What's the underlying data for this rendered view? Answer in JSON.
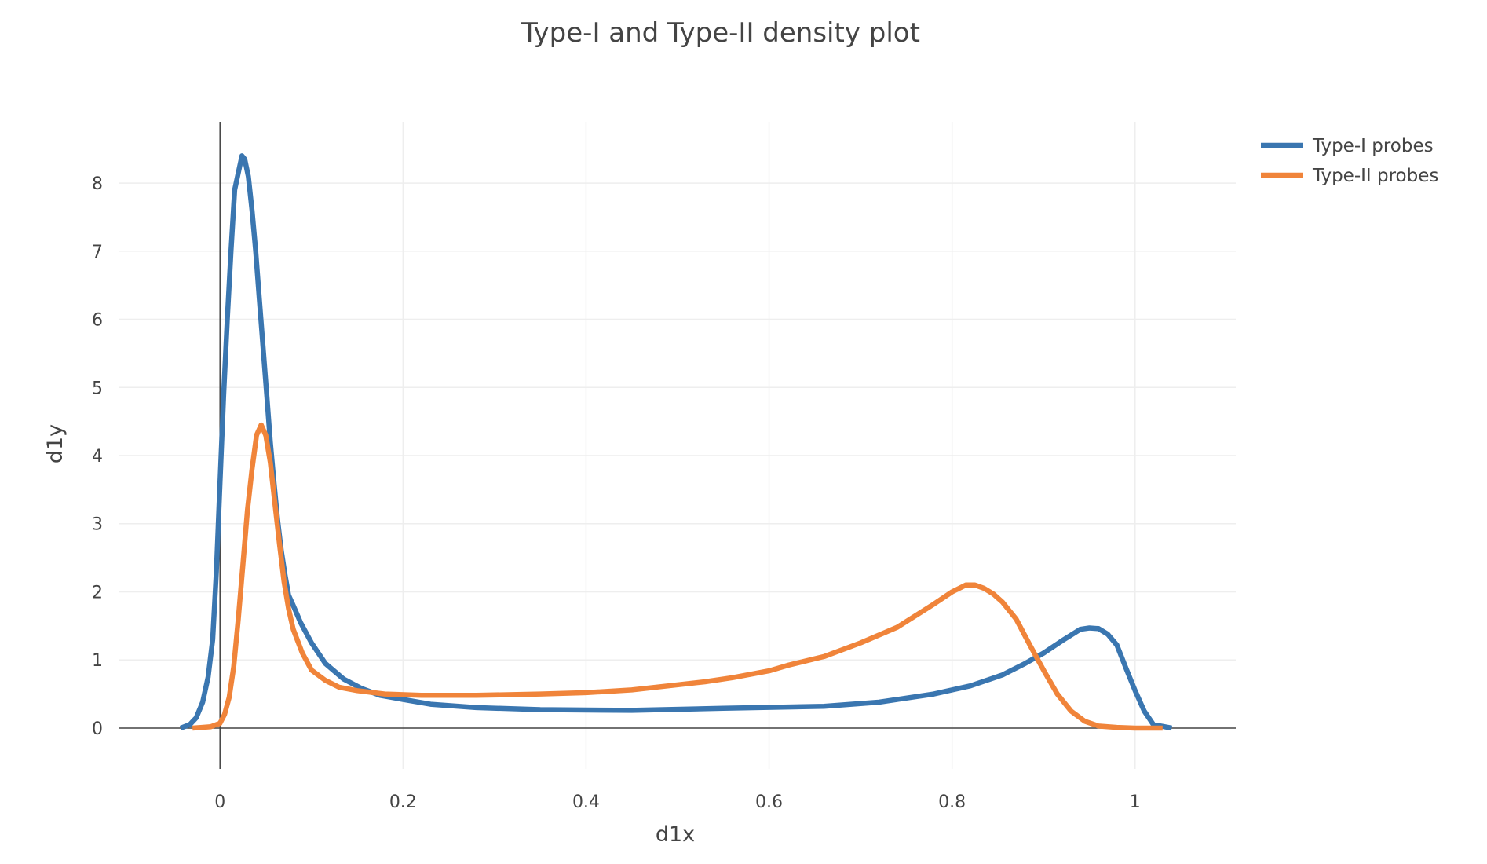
{
  "chart_data": {
    "type": "line",
    "title": "Type-I and Type-II density plot",
    "xlabel": "d1x",
    "ylabel": "d1y",
    "xlim": [
      -0.11,
      1.11
    ],
    "ylim": [
      -0.6,
      8.9
    ],
    "x_ticks": [
      0,
      0.2,
      0.4,
      0.6,
      0.8,
      1
    ],
    "x_tick_labels": [
      "0",
      "0.2",
      "0.4",
      "0.6",
      "0.8",
      "1"
    ],
    "y_ticks": [
      0,
      1,
      2,
      3,
      4,
      5,
      6,
      7,
      8
    ],
    "y_tick_labels": [
      "0",
      "1",
      "2",
      "3",
      "4",
      "5",
      "6",
      "7",
      "8"
    ],
    "grid": true,
    "legend_position": "top-right",
    "series": [
      {
        "name": "Type-I probes",
        "color": "#3a76b0",
        "x": [
          -0.043,
          -0.033,
          -0.026,
          -0.019,
          -0.013,
          -0.008,
          -0.004,
          0.0,
          0.004,
          0.008,
          0.012,
          0.016,
          0.02,
          0.024,
          0.027,
          0.031,
          0.035,
          0.039,
          0.043,
          0.047,
          0.051,
          0.055,
          0.059,
          0.063,
          0.067,
          0.071,
          0.075,
          0.08,
          0.088,
          0.1,
          0.115,
          0.135,
          0.155,
          0.175,
          0.2,
          0.23,
          0.28,
          0.35,
          0.45,
          0.55,
          0.66,
          0.72,
          0.78,
          0.82,
          0.855,
          0.88,
          0.9,
          0.92,
          0.94,
          0.95,
          0.96,
          0.97,
          0.98,
          0.99,
          1.0,
          1.01,
          1.02,
          1.04
        ],
        "y": [
          0.0,
          0.05,
          0.15,
          0.38,
          0.75,
          1.3,
          2.3,
          3.6,
          4.9,
          6.0,
          7.0,
          7.9,
          8.15,
          8.4,
          8.35,
          8.1,
          7.6,
          7.0,
          6.3,
          5.6,
          4.9,
          4.2,
          3.6,
          3.05,
          2.6,
          2.25,
          1.95,
          1.8,
          1.55,
          1.25,
          0.95,
          0.72,
          0.58,
          0.48,
          0.42,
          0.35,
          0.3,
          0.27,
          0.26,
          0.29,
          0.32,
          0.38,
          0.5,
          0.62,
          0.78,
          0.95,
          1.1,
          1.28,
          1.45,
          1.47,
          1.46,
          1.38,
          1.22,
          0.88,
          0.55,
          0.25,
          0.05,
          0.0
        ]
      },
      {
        "name": "Type-II probes",
        "color": "#f0843a",
        "x": [
          -0.03,
          -0.01,
          0.0,
          0.005,
          0.01,
          0.015,
          0.02,
          0.025,
          0.03,
          0.035,
          0.04,
          0.045,
          0.05,
          0.055,
          0.06,
          0.065,
          0.07,
          0.075,
          0.08,
          0.09,
          0.1,
          0.115,
          0.13,
          0.15,
          0.18,
          0.22,
          0.28,
          0.35,
          0.4,
          0.45,
          0.49,
          0.53,
          0.56,
          0.6,
          0.62,
          0.66,
          0.7,
          0.74,
          0.78,
          0.8,
          0.815,
          0.825,
          0.835,
          0.845,
          0.855,
          0.87,
          0.885,
          0.9,
          0.915,
          0.93,
          0.945,
          0.96,
          0.98,
          1.0,
          1.03
        ],
        "y": [
          0.0,
          0.02,
          0.07,
          0.2,
          0.45,
          0.9,
          1.6,
          2.4,
          3.2,
          3.8,
          4.3,
          4.45,
          4.3,
          3.9,
          3.3,
          2.7,
          2.15,
          1.75,
          1.45,
          1.1,
          0.85,
          0.7,
          0.6,
          0.55,
          0.5,
          0.48,
          0.48,
          0.5,
          0.52,
          0.56,
          0.62,
          0.68,
          0.74,
          0.84,
          0.92,
          1.05,
          1.25,
          1.48,
          1.82,
          2.0,
          2.1,
          2.1,
          2.05,
          1.97,
          1.85,
          1.6,
          1.22,
          0.85,
          0.5,
          0.25,
          0.1,
          0.03,
          0.01,
          0.0,
          0.0
        ]
      }
    ]
  }
}
